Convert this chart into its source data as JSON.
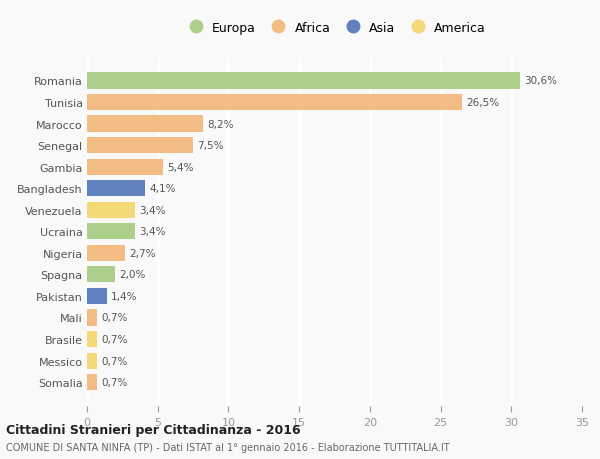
{
  "countries": [
    "Romania",
    "Tunisia",
    "Marocco",
    "Senegal",
    "Gambia",
    "Bangladesh",
    "Venezuela",
    "Ucraina",
    "Nigeria",
    "Spagna",
    "Pakistan",
    "Mali",
    "Brasile",
    "Messico",
    "Somalia"
  ],
  "values": [
    30.6,
    26.5,
    8.2,
    7.5,
    5.4,
    4.1,
    3.4,
    3.4,
    2.7,
    2.0,
    1.4,
    0.7,
    0.7,
    0.7,
    0.7
  ],
  "labels": [
    "30,6%",
    "26,5%",
    "8,2%",
    "7,5%",
    "5,4%",
    "4,1%",
    "3,4%",
    "3,4%",
    "2,7%",
    "2,0%",
    "1,4%",
    "0,7%",
    "0,7%",
    "0,7%",
    "0,7%"
  ],
  "regions": [
    "Europa",
    "Africa",
    "Africa",
    "Africa",
    "Africa",
    "Asia",
    "America",
    "Europa",
    "Africa",
    "Europa",
    "Asia",
    "Africa",
    "America",
    "America",
    "Africa"
  ],
  "region_colors": {
    "Europa": "#aecf8c",
    "Africa": "#f2bc84",
    "Asia": "#6080be",
    "America": "#f5d878"
  },
  "legend_order": [
    "Europa",
    "Africa",
    "Asia",
    "America"
  ],
  "title": "Cittadini Stranieri per Cittadinanza - 2016",
  "subtitle": "COMUNE DI SANTA NINFA (TP) - Dati ISTAT al 1° gennaio 2016 - Elaborazione TUTTITALIA.IT",
  "xlim": [
    0,
    35
  ],
  "xticks": [
    0,
    5,
    10,
    15,
    20,
    25,
    30,
    35
  ],
  "background_color": "#f9f9f9",
  "grid_color": "#ffffff",
  "bar_height": 0.75
}
